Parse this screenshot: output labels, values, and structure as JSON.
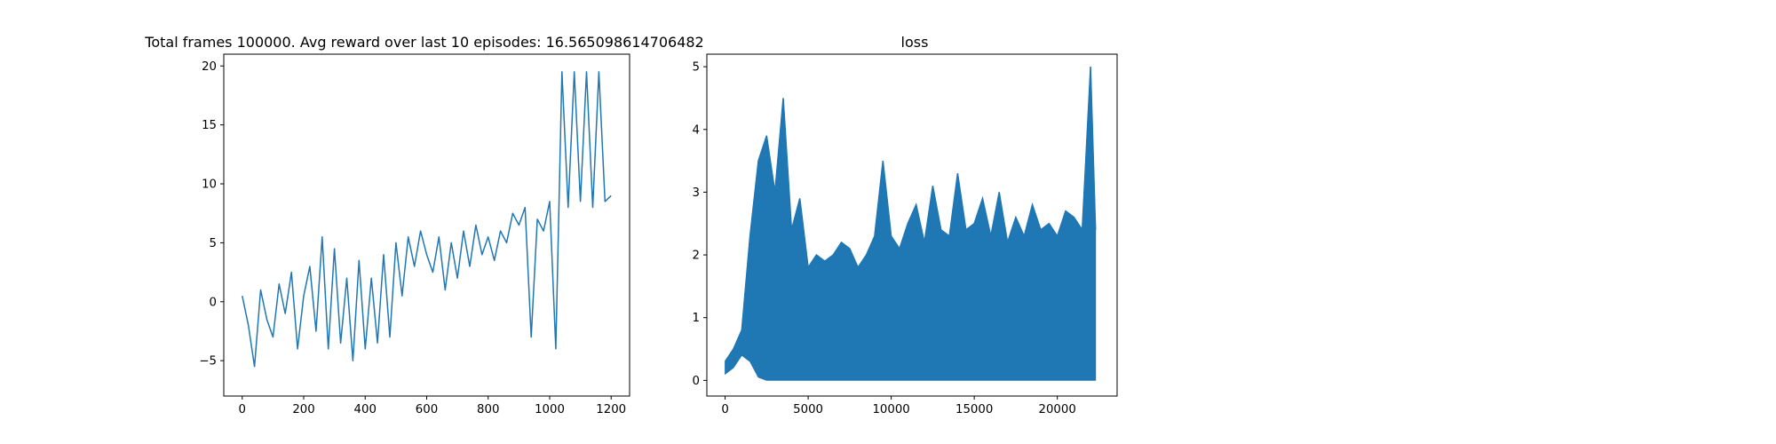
{
  "chart_data": [
    {
      "type": "line",
      "title": "Total frames 100000. Avg reward over last 10 episodes: 16.565098614706482",
      "xlabel": "",
      "ylabel": "",
      "xlim": [
        -60,
        1260
      ],
      "ylim": [
        -8,
        21
      ],
      "xticks": [
        0,
        200,
        400,
        600,
        800,
        1000,
        1200
      ],
      "yticks": [
        -5,
        0,
        5,
        10,
        15,
        20
      ],
      "grid": false,
      "color": "#1f77b4",
      "series": [
        {
          "x": [
            0,
            20,
            40,
            60,
            80,
            100,
            120,
            140,
            160,
            180,
            200,
            220,
            240,
            260,
            280,
            300,
            320,
            340,
            360,
            380,
            400,
            420,
            440,
            460,
            480,
            500,
            520,
            540,
            560,
            580,
            600,
            620,
            640,
            660,
            680,
            700,
            720,
            740,
            760,
            780,
            800,
            820,
            840,
            860,
            880,
            900,
            920,
            940,
            960,
            980,
            1000,
            1020,
            1040,
            1060,
            1080,
            1100,
            1120,
            1140,
            1160,
            1180,
            1200
          ],
          "y": [
            0.5,
            -2.0,
            -5.5,
            1.0,
            -1.5,
            -3.0,
            1.5,
            -1.0,
            2.5,
            -4.0,
            0.5,
            3.0,
            -2.5,
            5.5,
            -4.0,
            4.5,
            -3.5,
            2.0,
            -5.0,
            3.5,
            -4.0,
            2.0,
            -3.5,
            4.0,
            -3.0,
            5.0,
            0.5,
            5.5,
            3.0,
            6.0,
            4.0,
            2.5,
            5.5,
            1.0,
            5.0,
            2.0,
            6.0,
            3.0,
            6.5,
            4.0,
            5.5,
            3.5,
            6.0,
            5.0,
            7.5,
            6.5,
            8.0,
            -3.0,
            7.0,
            6.0,
            8.5,
            -4.0,
            19.5,
            8.0,
            19.5,
            8.5,
            19.5,
            8.0,
            19.5,
            8.5,
            9.0
          ]
        }
      ]
    },
    {
      "type": "line",
      "title": "loss",
      "xlabel": "",
      "ylabel": "",
      "xlim": [
        -1100,
        23600
      ],
      "ylim": [
        -0.25,
        5.2
      ],
      "xticks": [
        0,
        5000,
        10000,
        15000,
        20000
      ],
      "yticks": [
        0,
        1,
        2,
        3,
        4,
        5
      ],
      "grid": false,
      "color": "#1f77b4",
      "peaks": {
        "x": [
          0,
          500,
          1000,
          1500,
          2000,
          2500,
          3000,
          3500,
          4000,
          4500,
          5000,
          5500,
          6000,
          6500,
          7000,
          7500,
          8000,
          8500,
          9000,
          9500,
          10000,
          10500,
          11000,
          11500,
          12000,
          12500,
          13000,
          13500,
          14000,
          14500,
          15000,
          15500,
          16000,
          16500,
          17000,
          17500,
          18000,
          18500,
          19000,
          19500,
          20000,
          20500,
          21000,
          21500,
          22000,
          22300
        ],
        "y": [
          0.3,
          0.5,
          0.8,
          2.3,
          3.5,
          3.9,
          3.0,
          4.5,
          2.4,
          2.9,
          1.8,
          2.0,
          1.9,
          2.0,
          2.2,
          2.1,
          1.8,
          2.0,
          2.3,
          3.5,
          2.3,
          2.1,
          2.5,
          2.8,
          2.2,
          3.1,
          2.4,
          2.3,
          3.3,
          2.4,
          2.5,
          2.9,
          2.3,
          3.0,
          2.2,
          2.6,
          2.3,
          2.8,
          2.4,
          2.5,
          2.3,
          2.7,
          2.6,
          2.4,
          5.0,
          2.4
        ]
      },
      "troughs": {
        "x": [
          0,
          500,
          1000,
          1500,
          2000,
          2500,
          22300
        ],
        "y": [
          0.1,
          0.2,
          0.4,
          0.3,
          0.05,
          0.0,
          0.0
        ]
      }
    }
  ]
}
